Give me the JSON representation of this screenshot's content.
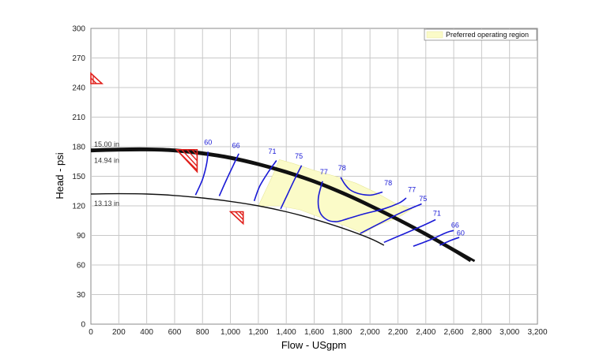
{
  "chart_data": {
    "type": "line",
    "title": "",
    "xlabel": "Flow - USgpm",
    "ylabel": "Head - psi",
    "xlim": [
      0,
      3200
    ],
    "ylim": [
      0,
      300
    ],
    "xticks": [
      "0",
      "200",
      "400",
      "600",
      "800",
      "1,000",
      "1,200",
      "1,400",
      "1,600",
      "1,800",
      "2,000",
      "2,200",
      "2,400",
      "2,600",
      "2,800",
      "3,000",
      "3,200"
    ],
    "yticks": [
      "0",
      "30",
      "60",
      "90",
      "120",
      "150",
      "180",
      "210",
      "240",
      "270",
      "300"
    ],
    "grid": true,
    "legend": {
      "placement": "top-right",
      "entries": [
        "Preferred operating region"
      ]
    },
    "colors": {
      "impeller": "#111111",
      "efficiency": "#1a1ad6",
      "region": "#fbfbc8",
      "region_edge": "#e8e89a",
      "marker": "#e0201c",
      "grid": "#c8c8c8"
    },
    "impeller_curves": [
      {
        "name": "15.00 in",
        "bold": true,
        "points": [
          [
            0,
            177
          ],
          [
            200,
            177.8
          ],
          [
            400,
            178
          ],
          [
            600,
            177
          ],
          [
            800,
            174
          ],
          [
            1000,
            169.5
          ],
          [
            1200,
            163
          ],
          [
            1400,
            155
          ],
          [
            1600,
            145.5
          ],
          [
            1800,
            134
          ],
          [
            2000,
            121
          ],
          [
            2200,
            107
          ],
          [
            2400,
            92
          ],
          [
            2600,
            76
          ],
          [
            2750,
            64
          ]
        ]
      },
      {
        "name": "14.94 in",
        "bold": true,
        "points": [
          [
            0,
            175.5
          ],
          [
            200,
            176.3
          ],
          [
            400,
            176.5
          ],
          [
            600,
            175.5
          ],
          [
            800,
            172.5
          ],
          [
            1000,
            168
          ],
          [
            1200,
            161.5
          ],
          [
            1400,
            153.5
          ],
          [
            1600,
            144
          ],
          [
            1800,
            132.5
          ],
          [
            2000,
            119.5
          ],
          [
            2200,
            105.5
          ],
          [
            2400,
            90.5
          ],
          [
            2600,
            74.5
          ],
          [
            2720,
            64
          ]
        ]
      },
      {
        "name": "13.13 in",
        "bold": false,
        "points": [
          [
            0,
            132
          ],
          [
            200,
            132.3
          ],
          [
            400,
            132
          ],
          [
            600,
            130.5
          ],
          [
            800,
            128
          ],
          [
            1000,
            124.5
          ],
          [
            1200,
            120
          ],
          [
            1400,
            114
          ],
          [
            1600,
            106.5
          ],
          [
            1800,
            97.5
          ],
          [
            2000,
            87
          ],
          [
            2100,
            80
          ]
        ]
      }
    ],
    "efficiency_curves": [
      {
        "label": "60",
        "points": [
          [
            750,
            131
          ],
          [
            800,
            147
          ],
          [
            830,
            163
          ],
          [
            840,
            175
          ]
        ],
        "label_at": [
          840,
          182
        ]
      },
      {
        "label": "66",
        "points": [
          [
            920,
            130
          ],
          [
            970,
            146
          ],
          [
            1020,
            161
          ],
          [
            1060,
            173
          ]
        ],
        "label_at": [
          1040,
          179
        ]
      },
      {
        "label": "71",
        "points": [
          [
            1170,
            125
          ],
          [
            1210,
            140
          ],
          [
            1270,
            154
          ],
          [
            1330,
            166
          ]
        ],
        "label_at": [
          1300,
          173
        ]
      },
      {
        "label": "75",
        "points": [
          [
            1360,
            117
          ],
          [
            1410,
            132
          ],
          [
            1460,
            147
          ],
          [
            1510,
            161
          ]
        ],
        "label_at": [
          1490,
          168
        ]
      },
      {
        "label": "77",
        "points": [
          [
            1660,
            145
          ],
          [
            1630,
            128
          ],
          [
            1640,
            114
          ],
          [
            1690,
            106
          ],
          [
            1760,
            104
          ],
          [
            1840,
            107
          ],
          [
            1960,
            112
          ],
          [
            2100,
            117
          ],
          [
            2210,
            123
          ],
          [
            2260,
            128
          ]
        ],
        "label_at": [
          1670,
          152
        ],
        "label2": "77",
        "label2_at": [
          2300,
          134
        ]
      },
      {
        "label": "78",
        "points": [
          [
            1790,
            149
          ],
          [
            1820,
            142
          ],
          [
            1860,
            136
          ],
          [
            1930,
            132
          ],
          [
            2010,
            131
          ],
          [
            2090,
            134
          ]
        ],
        "label_at": [
          1800,
          156
        ],
        "label2": "78",
        "label2_at": [
          2130,
          141
        ]
      },
      {
        "label": "75",
        "points": [
          [
            1930,
            92
          ],
          [
            2080,
            103
          ],
          [
            2220,
            113
          ],
          [
            2370,
            122
          ]
        ],
        "label_at": [
          2380,
          125
        ]
      },
      {
        "label": "71",
        "points": [
          [
            2100,
            83
          ],
          [
            2250,
            92
          ],
          [
            2380,
            100
          ],
          [
            2470,
            106
          ]
        ],
        "label_at": [
          2480,
          110
        ]
      },
      {
        "label": "66",
        "points": [
          [
            2310,
            79
          ],
          [
            2440,
            86
          ],
          [
            2550,
            93
          ],
          [
            2600,
            95
          ]
        ],
        "label_at": [
          2610,
          98
        ]
      },
      {
        "label": "60",
        "points": [
          [
            2500,
            80
          ],
          [
            2580,
            85
          ],
          [
            2640,
            88
          ]
        ],
        "label_at": [
          2650,
          90
        ]
      }
    ],
    "preferred_region": [
      [
        1200,
        120
      ],
      [
        1300,
        150
      ],
      [
        1350,
        167
      ],
      [
        1450,
        163
      ],
      [
        1600,
        156
      ],
      [
        1750,
        150
      ],
      [
        1900,
        143
      ],
      [
        2050,
        133
      ],
      [
        2200,
        121
      ],
      [
        2300,
        117
      ],
      [
        2200,
        108
      ],
      [
        2050,
        100
      ],
      [
        1950,
        92
      ],
      [
        1820,
        100
      ],
      [
        1650,
        108
      ],
      [
        1500,
        116
      ],
      [
        1350,
        120
      ]
    ],
    "markers": [
      {
        "kind": "bep",
        "at": [
          750,
          177
        ]
      },
      {
        "kind": "shutoff",
        "at": [
          60,
          248
        ]
      },
      {
        "kind": "min-flow",
        "at": [
          1080,
          110
        ]
      }
    ]
  }
}
